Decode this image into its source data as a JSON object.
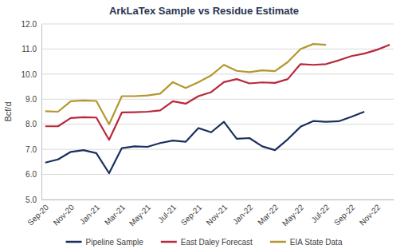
{
  "chart_data": {
    "type": "line",
    "title": "ArkLaTex Sample vs Residue Estimate",
    "y_label": "Bcf/d",
    "categories": [
      "Sep-20",
      null,
      "Nov-20",
      null,
      "Jan-21",
      null,
      "Mar-21",
      null,
      "May-21",
      null,
      "Jul-21",
      null,
      "Sep-21",
      null,
      "Nov-21",
      null,
      "Jan-22",
      null,
      "Mar-22",
      null,
      "May-22",
      null,
      "Jul-22",
      null,
      "Sep-22",
      null,
      "Nov-22",
      null
    ],
    "series": [
      {
        "name": "Pipeline Sample",
        "color": "#1b2f5e",
        "values": [
          6.47,
          6.6,
          6.9,
          6.97,
          6.85,
          6.05,
          7.05,
          7.12,
          7.1,
          7.25,
          7.35,
          7.3,
          7.85,
          7.68,
          8.1,
          7.42,
          7.45,
          7.12,
          6.97,
          7.4,
          7.9,
          8.13,
          8.1,
          8.12,
          8.3,
          8.5,
          null,
          null
        ]
      },
      {
        "name": "East Daley Forecast",
        "color": "#b8283c",
        "values": [
          7.92,
          7.92,
          8.25,
          8.28,
          8.27,
          7.38,
          8.47,
          8.48,
          8.5,
          8.55,
          8.92,
          8.82,
          9.12,
          9.28,
          9.68,
          9.8,
          9.63,
          9.67,
          9.65,
          9.8,
          10.4,
          10.37,
          10.4,
          10.55,
          10.72,
          10.82,
          10.97,
          11.17
        ]
      },
      {
        "name": "EIA State Data",
        "color": "#b5962e",
        "values": [
          8.52,
          8.5,
          8.92,
          8.95,
          8.93,
          8.0,
          9.12,
          9.12,
          9.15,
          9.22,
          9.68,
          9.45,
          9.68,
          9.95,
          10.37,
          10.13,
          10.08,
          10.15,
          10.12,
          10.48,
          11.0,
          11.2,
          11.17,
          null,
          null,
          null,
          null,
          null
        ]
      }
    ],
    "ylim": [
      5,
      12
    ],
    "yticks": [
      {
        "value": 5,
        "label": "5.0"
      },
      {
        "value": 6,
        "label": "6.0"
      },
      {
        "value": 7,
        "label": "7.0"
      },
      {
        "value": 8,
        "label": "8.0"
      },
      {
        "value": 9,
        "label": "9.0"
      },
      {
        "value": 10,
        "label": "10.0"
      },
      {
        "value": 11,
        "label": "11.0"
      },
      {
        "value": 12,
        "label": "12.0"
      }
    ],
    "grid": true,
    "legend": "bottom"
  }
}
